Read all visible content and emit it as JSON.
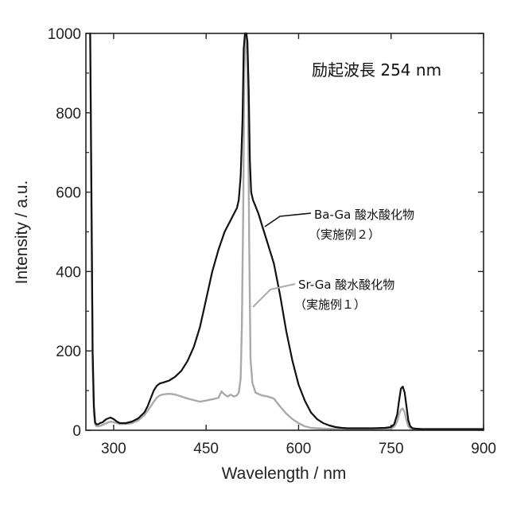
{
  "chart_data": {
    "type": "line",
    "title": "",
    "xlabel": "Wavelength / nm",
    "ylabel": "Intensity / a.u.",
    "xlim": [
      255,
      900
    ],
    "ylim": [
      0,
      1000
    ],
    "xticks": [
      300,
      450,
      600,
      750,
      900
    ],
    "yticks": [
      0,
      200,
      400,
      600,
      800,
      1000
    ],
    "grid": false,
    "annotations": {
      "excitation": "励起波長 254 nm",
      "ba_line1": "Ba-Ga 酸水酸化物",
      "ba_line2": "（実施例２）",
      "sr_line1": "Sr-Ga 酸水酸化物",
      "sr_line2": "（実施例１）"
    },
    "series": [
      {
        "name": "Ba-Ga 酸水酸化物（実施例２）",
        "color": "#111111",
        "x": [
          262,
          264,
          266,
          268,
          270,
          272,
          275,
          278,
          282,
          288,
          295,
          300,
          305,
          310,
          315,
          320,
          325,
          330,
          340,
          350,
          355,
          360,
          365,
          370,
          375,
          380,
          390,
          400,
          410,
          420,
          430,
          440,
          450,
          460,
          470,
          480,
          490,
          495,
          500,
          503,
          506,
          509,
          511,
          513,
          515,
          517,
          519,
          521,
          523,
          526,
          530,
          535,
          540,
          550,
          560,
          570,
          580,
          590,
          600,
          610,
          620,
          630,
          640,
          650,
          660,
          670,
          680,
          700,
          720,
          740,
          750,
          755,
          760,
          763,
          766,
          769,
          772,
          775,
          778,
          781,
          785,
          790,
          800,
          850,
          900
        ],
        "y": [
          1000,
          600,
          200,
          60,
          20,
          15,
          15,
          18,
          20,
          28,
          32,
          28,
          22,
          18,
          18,
          18,
          20,
          22,
          30,
          45,
          60,
          80,
          100,
          112,
          118,
          120,
          125,
          135,
          150,
          175,
          210,
          260,
          330,
          400,
          455,
          500,
          530,
          545,
          560,
          580,
          640,
          780,
          960,
          1000,
          1000,
          980,
          860,
          680,
          600,
          580,
          565,
          545,
          520,
          470,
          420,
          340,
          250,
          175,
          115,
          75,
          45,
          28,
          18,
          12,
          8,
          6,
          5,
          5,
          5,
          6,
          8,
          15,
          40,
          75,
          105,
          110,
          95,
          60,
          25,
          10,
          5,
          4,
          3,
          3,
          3
        ]
      },
      {
        "name": "Sr-Ga 酸水酸化物（実施例１）",
        "color": "#aaaaaa",
        "x": [
          262,
          264,
          266,
          268,
          270,
          272,
          275,
          280,
          288,
          295,
          300,
          310,
          320,
          330,
          340,
          350,
          360,
          365,
          370,
          375,
          380,
          390,
          400,
          420,
          440,
          450,
          460,
          470,
          475,
          480,
          485,
          490,
          495,
          500,
          503,
          506,
          508,
          510,
          512,
          514,
          516,
          518,
          520,
          522,
          525,
          530,
          540,
          550,
          560,
          570,
          580,
          590,
          600,
          610,
          620,
          640,
          660,
          700,
          740,
          750,
          755,
          760,
          763,
          766,
          769,
          772,
          775,
          778,
          781,
          785,
          790,
          800,
          850,
          900
        ],
        "y": [
          1000,
          500,
          150,
          40,
          15,
          10,
          10,
          12,
          18,
          22,
          20,
          16,
          16,
          18,
          25,
          38,
          60,
          72,
          82,
          88,
          90,
          92,
          90,
          80,
          72,
          75,
          78,
          82,
          98,
          90,
          85,
          90,
          85,
          88,
          95,
          130,
          260,
          530,
          900,
          1000,
          1000,
          820,
          460,
          180,
          120,
          95,
          88,
          85,
          80,
          60,
          42,
          28,
          18,
          10,
          6,
          4,
          3,
          3,
          3,
          5,
          9,
          22,
          40,
          52,
          55,
          45,
          25,
          10,
          5,
          3,
          2,
          2,
          2,
          2
        ]
      }
    ]
  }
}
